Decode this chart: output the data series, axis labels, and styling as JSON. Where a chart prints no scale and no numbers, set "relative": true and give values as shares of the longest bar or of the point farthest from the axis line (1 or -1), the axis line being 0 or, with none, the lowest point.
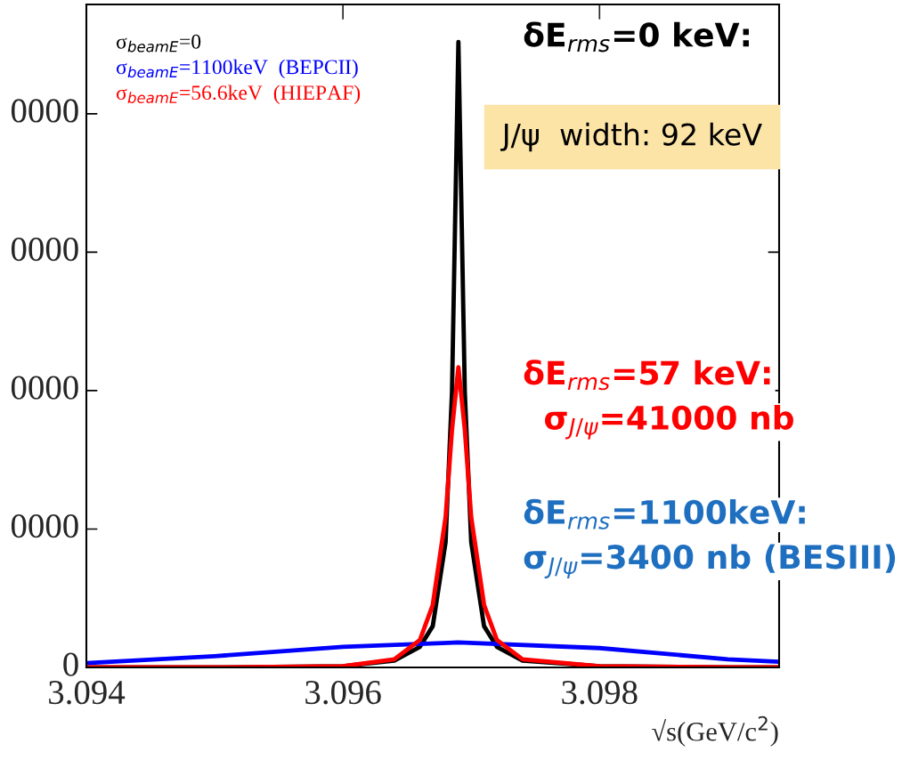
{
  "chart_data": {
    "type": "line",
    "xlabel": "√s(GeV/c$^{2}$)",
    "xlim": [
      3.094,
      3.0994
    ],
    "xticks": [
      3.094,
      3.096,
      3.098
    ],
    "relative": true,
    "legend": "top left",
    "grid": false,
    "series": [
      {
        "name": "σ$_{beamE}$=0",
        "color": "#000000",
        "x": [
          3.094,
          3.095,
          3.096,
          3.0964,
          3.0966,
          3.0967,
          3.0968,
          3.09685,
          3.0969,
          3.09695,
          3.097,
          3.0971,
          3.0972,
          3.0974,
          3.098,
          3.099,
          3.0994
        ],
        "values": [
          0,
          0,
          0.002,
          0.011,
          0.033,
          0.066,
          0.2,
          0.44,
          1,
          0.44,
          0.2,
          0.066,
          0.033,
          0.011,
          0.002,
          0,
          0
        ]
      },
      {
        "name": "σ$_{beamE}$=1100keV  (BEPCII)",
        "color": "#0000ff",
        "x": [
          3.094,
          3.095,
          3.096,
          3.0969,
          3.098,
          3.099,
          3.0994
        ],
        "values": [
          0.007,
          0.018,
          0.033,
          0.04,
          0.031,
          0.013,
          0.009
        ]
      },
      {
        "name": "σ$_{beamE}$=56.6keV  (HIEPAF)",
        "color": "#ff0000",
        "x": [
          3.094,
          3.095,
          3.096,
          3.0964,
          3.0966,
          3.0967,
          3.0968,
          3.09685,
          3.0969,
          3.09695,
          3.097,
          3.0971,
          3.0972,
          3.0974,
          3.098,
          3.099,
          3.0994
        ],
        "values": [
          0,
          0,
          0.002,
          0.013,
          0.044,
          0.1,
          0.24,
          0.38,
          0.48,
          0.38,
          0.24,
          0.1,
          0.044,
          0.013,
          0.002,
          0,
          0
        ]
      }
    ],
    "annotations": [
      "δE$_{rms}$=0 keV:",
      "J/ψ  width: 92 keV",
      "δE$_{rms}$=57 keV:",
      "σ$_{J/ψ}$=41000 nb",
      "δE$_{rms}$=1100keV:",
      "σ$_{J/ψ}$=3400 nb (BESIII)",
      "0",
      "0000",
      "0000",
      "0000",
      "0000"
    ]
  }
}
